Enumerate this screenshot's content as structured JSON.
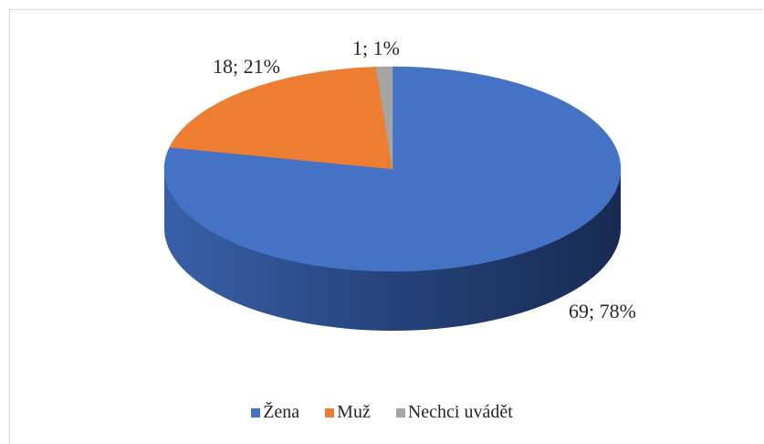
{
  "chart_data": {
    "type": "pie3d",
    "categories": [
      "Žena",
      "Muž",
      "Nechci uvádět"
    ],
    "values": [
      69,
      18,
      1
    ],
    "value_labels": [
      "69; 78%",
      "18; 21%",
      "1; 1%"
    ],
    "colors": [
      "#4472c4",
      "#ed7d31",
      "#a5a5a5"
    ],
    "legend": "bottom"
  }
}
